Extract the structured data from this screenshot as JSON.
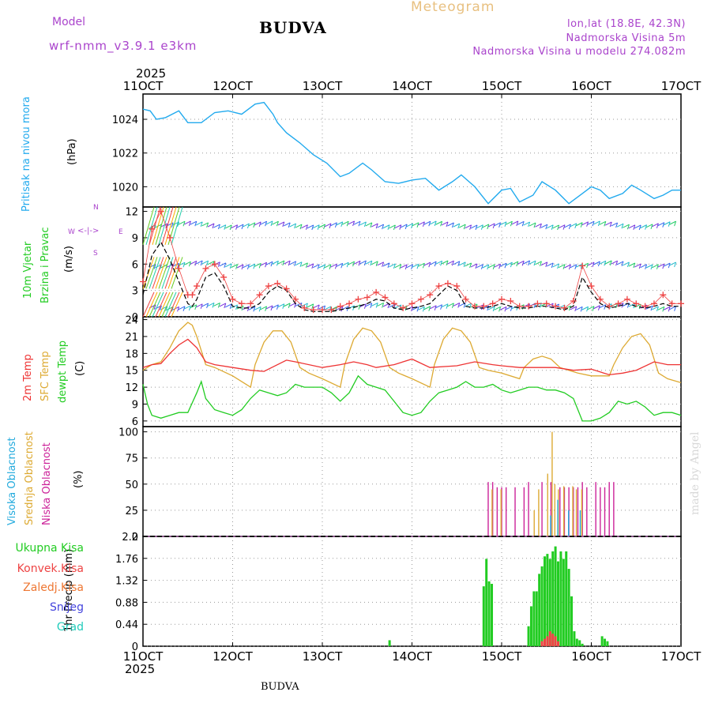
{
  "header": {
    "meteogram_label": "Meteogram",
    "model_label": "Model",
    "model_name": "wrf-nmm_v3.9.1 e3km",
    "station": "BUDVA",
    "lonlat": "lon,lat (18.8E, 42.3N)",
    "altitude": "Nadmorska Visina 5m",
    "model_altitude": "Nadmorska Visina u modelu 274.082m",
    "year_top": "2025",
    "year_bottom": "2025",
    "footer_station": "BUDVA",
    "credit": "made by Angel"
  },
  "x_axis": {
    "ticks": [
      "11OCT",
      "12OCT",
      "13OCT",
      "14OCT",
      "15OCT",
      "16OCT",
      "17OCT"
    ]
  },
  "panels": {
    "pressure": {
      "label": "Pritisak na nivou mora",
      "unit": "(hPa)",
      "ticks": [
        "1020",
        "1022",
        "1024"
      ]
    },
    "wind": {
      "label1": "10m Vjetar",
      "label2": "Brzina i Pravac",
      "unit": "(m/s)",
      "ticks": [
        "0",
        "3",
        "6",
        "9",
        "12"
      ],
      "compass_n": "N",
      "compass_s": "S",
      "compass_w": "W",
      "compass_e": "E"
    },
    "temp": {
      "label1": "2m Temp",
      "label2": "SFC Temp",
      "label3": "dewpt Temp",
      "unit": "(C)",
      "ticks": [
        "6",
        "9",
        "12",
        "15",
        "18",
        "21",
        "24"
      ]
    },
    "cloud": {
      "label1": "Visoka Oblacnost",
      "label2": "Srednja Oblacnost",
      "label3": "Niska Oblacnost",
      "unit": "(%)",
      "ticks": [
        "0",
        "25",
        "50",
        "75",
        "100"
      ]
    },
    "precip": {
      "unit": "1hr Precip (mm)",
      "ticks": [
        "0",
        "0.44",
        "0.88",
        "1.32",
        "1.76",
        "2.2"
      ],
      "legend": [
        "Ukupna Kisa",
        "Konvek.Kisa",
        "Zaledj.Kisa",
        "Snijeg",
        "Grad"
      ]
    }
  },
  "colors": {
    "pressure": "#22aaee",
    "wind_line": "#000000",
    "wind_gust": "#ee4444",
    "t2m": "#ee3333",
    "tsfc": "#ddaa33",
    "dewpt": "#22cc22",
    "cloud_high": "#22aadd",
    "cloud_mid": "#ddaa33",
    "cloud_low": "#cc2299",
    "rain_total": "#22cc22",
    "rain_conv": "#ee4444",
    "rain_frz": "#ee7733",
    "snow": "#4444dd",
    "hail": "#22ccbb",
    "label_pressure": "#22aaee",
    "label_wind": "#22cc22",
    "label_compass": "#aa44cc"
  },
  "chart_data": [
    {
      "type": "line",
      "title": "Pritisak na nivou mora",
      "ylabel": "(hPa)",
      "xlim": [
        0,
        6
      ],
      "ylim": [
        1018.8,
        1025.5
      ],
      "series": [
        {
          "name": "MSLP",
          "x": [
            0,
            0.08,
            0.15,
            0.25,
            0.4,
            0.5,
            0.65,
            0.8,
            0.95,
            1.1,
            1.25,
            1.35,
            1.45,
            1.5,
            1.6,
            1.75,
            1.9,
            2.05,
            2.2,
            2.3,
            2.45,
            2.55,
            2.7,
            2.85,
            3.0,
            3.15,
            3.3,
            3.45,
            3.55,
            3.7,
            3.85,
            4.0,
            4.1,
            4.2,
            4.35,
            4.45,
            4.6,
            4.75,
            4.9,
            5.0,
            5.1,
            5.2,
            5.35,
            5.45,
            5.55,
            5.7,
            5.8,
            5.9,
            6.0
          ],
          "values": [
            1024.6,
            1024.5,
            1024.0,
            1024.1,
            1024.5,
            1023.8,
            1023.8,
            1024.4,
            1024.5,
            1024.3,
            1024.9,
            1025.0,
            1024.3,
            1023.8,
            1023.2,
            1022.6,
            1021.9,
            1021.4,
            1020.6,
            1020.8,
            1021.4,
            1021.0,
            1020.3,
            1020.2,
            1020.4,
            1020.5,
            1019.8,
            1020.3,
            1020.7,
            1020.0,
            1019.0,
            1019.8,
            1019.9,
            1019.1,
            1019.5,
            1020.3,
            1019.8,
            1019.0,
            1019.6,
            1020.0,
            1019.8,
            1019.3,
            1019.6,
            1020.1,
            1019.8,
            1019.3,
            1019.5,
            1019.8,
            1019.8
          ]
        }
      ]
    },
    {
      "type": "line",
      "title": "10m Vjetar Brzina i Pravac",
      "ylabel": "(m/s)",
      "xlim": [
        0,
        6
      ],
      "ylim": [
        0,
        12.5
      ],
      "series": [
        {
          "name": "wind speed",
          "x": [
            0,
            0.1,
            0.2,
            0.3,
            0.4,
            0.5,
            0.55,
            0.6,
            0.7,
            0.8,
            0.9,
            1.0,
            1.1,
            1.2,
            1.3,
            1.4,
            1.5,
            1.6,
            1.7,
            1.8,
            1.9,
            2.0,
            2.1,
            2.2,
            2.3,
            2.4,
            2.5,
            2.6,
            2.7,
            2.8,
            2.9,
            3.0,
            3.1,
            3.2,
            3.3,
            3.4,
            3.5,
            3.6,
            3.7,
            3.8,
            3.9,
            4.0,
            4.1,
            4.2,
            4.3,
            4.4,
            4.5,
            4.6,
            4.7,
            4.8,
            4.9,
            5.0,
            5.1,
            5.2,
            5.3,
            5.4,
            5.5,
            5.6,
            5.7,
            5.8,
            5.9,
            6.0
          ],
          "values": [
            2.5,
            7.0,
            8.5,
            6.5,
            4.0,
            1.5,
            1.2,
            2.0,
            4.5,
            5.0,
            3.5,
            1.2,
            1.0,
            1.0,
            1.5,
            2.8,
            3.5,
            3.0,
            1.5,
            0.8,
            0.6,
            0.6,
            0.6,
            0.8,
            1.0,
            1.2,
            1.5,
            2.0,
            1.8,
            1.0,
            0.8,
            1.0,
            1.2,
            1.5,
            2.5,
            3.5,
            3.0,
            1.2,
            1.0,
            1.0,
            1.2,
            1.5,
            1.2,
            1.0,
            1.0,
            1.2,
            1.2,
            1.0,
            0.8,
            1.2,
            4.5,
            2.8,
            1.5,
            1.0,
            1.2,
            1.5,
            1.2,
            1.0,
            1.2,
            1.5,
            1.2,
            1.2
          ]
        },
        {
          "name": "wind gust",
          "x": [
            0,
            0.1,
            0.2,
            0.3,
            0.4,
            0.5,
            0.55,
            0.6,
            0.7,
            0.8,
            0.9,
            1.0,
            1.1,
            1.2,
            1.3,
            1.4,
            1.5,
            1.6,
            1.7,
            1.8,
            1.9,
            2.0,
            2.1,
            2.2,
            2.3,
            2.4,
            2.5,
            2.6,
            2.7,
            2.8,
            2.9,
            3.0,
            3.1,
            3.2,
            3.3,
            3.4,
            3.5,
            3.6,
            3.7,
            3.8,
            3.9,
            4.0,
            4.1,
            4.2,
            4.3,
            4.4,
            4.5,
            4.6,
            4.7,
            4.8,
            4.9,
            5.0,
            5.1,
            5.2,
            5.3,
            5.4,
            5.5,
            5.6,
            5.7,
            5.8,
            5.9,
            6.0
          ],
          "values": [
            4.0,
            10.0,
            12.0,
            9.0,
            5.5,
            2.5,
            2.5,
            3.5,
            5.5,
            6.0,
            4.5,
            2.0,
            1.5,
            1.5,
            2.5,
            3.5,
            3.8,
            3.2,
            2.0,
            1.0,
            0.8,
            0.8,
            0.8,
            1.2,
            1.5,
            2.0,
            2.2,
            2.8,
            2.2,
            1.5,
            1.0,
            1.5,
            2.0,
            2.5,
            3.5,
            3.8,
            3.5,
            2.0,
            1.2,
            1.2,
            1.5,
            2.0,
            1.8,
            1.2,
            1.2,
            1.5,
            1.5,
            1.2,
            1.0,
            1.8,
            5.8,
            3.5,
            2.0,
            1.2,
            1.5,
            2.0,
            1.5,
            1.2,
            1.5,
            2.5,
            1.5,
            1.5
          ]
        }
      ]
    },
    {
      "type": "line",
      "title": "2m Temp / SFC Temp / dewpt Temp",
      "ylabel": "(C)",
      "xlim": [
        0,
        6
      ],
      "ylim": [
        5,
        24.5
      ],
      "series": [
        {
          "name": "2m Temp",
          "x": [
            0,
            0.1,
            0.2,
            0.3,
            0.4,
            0.5,
            0.6,
            0.7,
            0.8,
            1.0,
            1.2,
            1.35,
            1.5,
            1.6,
            1.7,
            2.0,
            2.2,
            2.35,
            2.5,
            2.6,
            2.8,
            3.0,
            3.2,
            3.5,
            3.7,
            3.9,
            4.0,
            4.2,
            4.4,
            4.6,
            4.8,
            5.0,
            5.2,
            5.35,
            5.5,
            5.7,
            5.85,
            6.0
          ],
          "values": [
            15.5,
            16.0,
            16.2,
            18.0,
            19.5,
            20.5,
            19.0,
            16.5,
            16.0,
            15.5,
            15.0,
            14.8,
            16.0,
            16.8,
            16.5,
            15.5,
            16.0,
            16.5,
            16.0,
            15.5,
            16.0,
            17.0,
            15.5,
            15.8,
            16.5,
            16.0,
            15.8,
            15.5,
            15.5,
            15.5,
            15.0,
            15.2,
            14.2,
            14.5,
            15.0,
            16.5,
            16.0,
            16.0
          ]
        },
        {
          "name": "SFC Temp",
          "x": [
            0,
            0.1,
            0.2,
            0.3,
            0.4,
            0.5,
            0.55,
            0.6,
            0.7,
            0.8,
            1.0,
            1.2,
            1.25,
            1.35,
            1.45,
            1.55,
            1.65,
            1.75,
            1.85,
            2.0,
            2.2,
            2.25,
            2.35,
            2.45,
            2.55,
            2.65,
            2.75,
            2.85,
            3.0,
            3.2,
            3.25,
            3.35,
            3.45,
            3.55,
            3.65,
            3.75,
            3.85,
            4.0,
            4.2,
            4.25,
            4.35,
            4.45,
            4.55,
            4.65,
            4.75,
            4.85,
            5.0,
            5.2,
            5.25,
            5.35,
            5.45,
            5.55,
            5.65,
            5.75,
            5.85,
            6.0
          ],
          "values": [
            15.0,
            16.0,
            16.5,
            19.0,
            22.0,
            23.5,
            23.0,
            21.0,
            16.0,
            15.5,
            14.0,
            12.0,
            16.0,
            20.0,
            22.0,
            22.0,
            20.0,
            15.5,
            14.5,
            13.5,
            12.0,
            16.0,
            20.5,
            22.5,
            22.0,
            20.0,
            15.5,
            14.5,
            13.5,
            12.0,
            16.0,
            20.5,
            22.5,
            22.0,
            20.0,
            15.5,
            15.0,
            14.5,
            13.5,
            15.5,
            17.0,
            17.5,
            17.0,
            15.5,
            15.0,
            14.5,
            14.0,
            14.0,
            16.0,
            19.0,
            21.0,
            21.5,
            19.5,
            14.5,
            13.5,
            12.8
          ]
        },
        {
          "name": "dewpt Temp",
          "x": [
            0,
            0.05,
            0.1,
            0.2,
            0.3,
            0.4,
            0.5,
            0.6,
            0.65,
            0.7,
            0.8,
            0.9,
            1.0,
            1.1,
            1.2,
            1.3,
            1.4,
            1.5,
            1.6,
            1.7,
            1.8,
            1.9,
            2.0,
            2.1,
            2.2,
            2.3,
            2.4,
            2.5,
            2.6,
            2.7,
            2.8,
            2.9,
            3.0,
            3.1,
            3.2,
            3.3,
            3.4,
            3.5,
            3.6,
            3.7,
            3.8,
            3.9,
            4.0,
            4.1,
            4.2,
            4.3,
            4.4,
            4.5,
            4.6,
            4.7,
            4.8,
            4.9,
            5.0,
            5.1,
            5.2,
            5.3,
            5.4,
            5.5,
            5.6,
            5.7,
            5.8,
            5.9,
            6.0
          ],
          "values": [
            12.5,
            9.0,
            7.0,
            6.5,
            7.0,
            7.5,
            7.5,
            11.0,
            13.0,
            10.0,
            8.0,
            7.5,
            7.0,
            8.0,
            10.0,
            11.5,
            11.0,
            10.5,
            11.0,
            12.5,
            12.0,
            12.0,
            12.0,
            11.0,
            9.5,
            11.0,
            14.0,
            12.5,
            12.0,
            11.5,
            9.5,
            7.5,
            7.0,
            7.5,
            9.5,
            11.0,
            11.5,
            12.0,
            13.0,
            12.0,
            12.0,
            12.5,
            11.5,
            11.0,
            11.5,
            12.0,
            12.0,
            11.5,
            11.5,
            11.0,
            10.0,
            6.0,
            6.0,
            6.5,
            7.5,
            9.5,
            9.0,
            9.5,
            8.5,
            7.0,
            7.5,
            7.5,
            7.0
          ]
        }
      ]
    },
    {
      "type": "bar",
      "title": "Oblacnost",
      "ylabel": "(%)",
      "xlim": [
        0,
        6
      ],
      "ylim": [
        0,
        105
      ],
      "series": [
        {
          "name": "Niska Oblacnost",
          "x": [
            3.85,
            3.9,
            3.95,
            4.0,
            4.05,
            4.15,
            4.25,
            4.3,
            4.45,
            4.55,
            4.65,
            4.7,
            4.75,
            4.8,
            4.85,
            4.9,
            4.95,
            5.05,
            5.1,
            5.15,
            5.2,
            5.25
          ],
          "values": [
            52,
            52,
            47,
            47,
            47,
            47,
            47,
            52,
            52,
            52,
            47,
            47,
            47,
            47,
            47,
            52,
            47,
            52,
            47,
            47,
            52,
            52
          ]
        },
        {
          "name": "Srednja Oblacnost",
          "x": [
            3.88,
            3.98,
            4.35,
            4.4,
            4.5,
            4.55,
            4.58,
            4.62,
            4.68,
            4.78,
            4.82,
            4.88
          ],
          "values": [
            45,
            45,
            25,
            45,
            60,
            100,
            50,
            45,
            48,
            48,
            45,
            45
          ]
        },
        {
          "name": "Visoka Oblacnost",
          "x": [
            4.52,
            4.6,
            4.72,
            4.85
          ],
          "values": [
            20,
            35,
            25,
            25
          ]
        }
      ]
    },
    {
      "type": "bar",
      "title": "1hr Precip",
      "ylabel": "1hr Precip (mm)",
      "xlim": [
        0,
        6
      ],
      "ylim": [
        0,
        2.2
      ],
      "series": [
        {
          "name": "Ukupna Kisa",
          "x": [
            2.75,
            3.8,
            3.83,
            3.86,
            3.89,
            4.3,
            4.33,
            4.36,
            4.39,
            4.42,
            4.45,
            4.48,
            4.51,
            4.54,
            4.57,
            4.6,
            4.63,
            4.66,
            4.69,
            4.72,
            4.75,
            4.78,
            4.81,
            4.84,
            4.87,
            4.9,
            5.12,
            5.15,
            5.18
          ],
          "values": [
            0.12,
            1.2,
            1.75,
            1.3,
            1.25,
            0.4,
            0.8,
            1.1,
            1.1,
            1.45,
            1.6,
            1.8,
            1.85,
            1.75,
            1.9,
            2.0,
            1.7,
            1.9,
            1.75,
            1.9,
            1.55,
            1.0,
            0.3,
            0.15,
            0.12,
            0.05,
            0.2,
            0.15,
            0.1
          ]
        },
        {
          "name": "Konvek.Kisa",
          "x": [
            4.45,
            4.48,
            4.51,
            4.54,
            4.57,
            4.6,
            4.63
          ],
          "values": [
            0.1,
            0.15,
            0.2,
            0.3,
            0.25,
            0.2,
            0.1
          ]
        }
      ]
    }
  ]
}
